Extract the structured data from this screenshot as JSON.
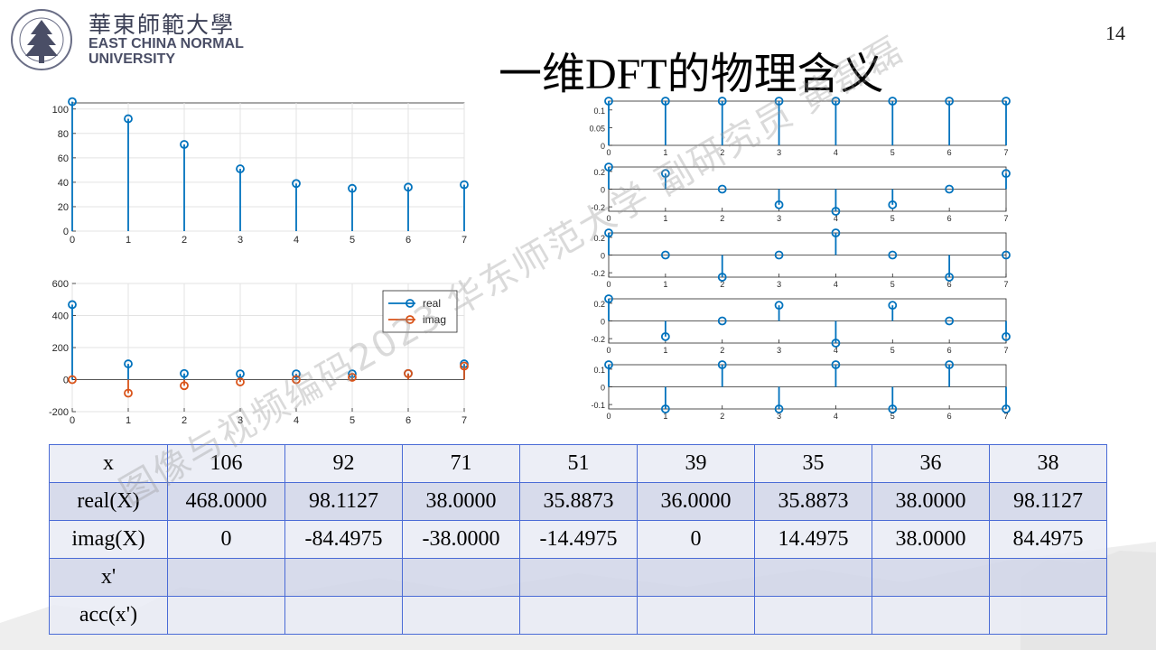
{
  "header": {
    "logo_cn": "華東師範大學",
    "logo_en_line1": "EAST CHINA NORMAL",
    "logo_en_line2": "UNIVERSITY",
    "page_number": "14",
    "title": "一维DFT的物理含义"
  },
  "watermark": "图像与视频编码2023 华东师范大学 副研究员 黄磊磊",
  "chart_data": [
    {
      "type": "stem",
      "x": [
        0,
        1,
        2,
        3,
        4,
        5,
        6,
        7
      ],
      "series": [
        {
          "values": [
            106,
            92,
            71,
            51,
            39,
            35,
            36,
            38
          ],
          "color": "#0072bd"
        }
      ],
      "xlim": [
        0,
        7
      ],
      "ylim": [
        0,
        105
      ],
      "xticks": [
        "0",
        "1",
        "2",
        "3",
        "4",
        "5",
        "6",
        "7"
      ],
      "yticks": [
        0,
        20,
        40,
        60,
        80,
        100
      ],
      "grid": true
    },
    {
      "type": "stem",
      "x": [
        0,
        1,
        2,
        3,
        4,
        5,
        6,
        7
      ],
      "series": [
        {
          "name": "real",
          "values": [
            468,
            98.1127,
            38,
            35.8873,
            36,
            35.8873,
            38,
            98.1127
          ],
          "color": "#0072bd"
        },
        {
          "name": "imag",
          "values": [
            0,
            -84.4975,
            -38,
            -14.4975,
            0,
            14.4975,
            38,
            84.4975
          ],
          "color": "#d95319"
        }
      ],
      "xlim": [
        0,
        7
      ],
      "ylim": [
        -200,
        600
      ],
      "xticks": [
        "0",
        "1",
        "2",
        "3",
        "4",
        "5",
        "6",
        "7"
      ],
      "yticks": [
        -200,
        0,
        200,
        400,
        600
      ],
      "legend": "top-right",
      "grid": true
    },
    {
      "type": "stem",
      "x": [
        0,
        1,
        2,
        3,
        4,
        5,
        6,
        7
      ],
      "series": [
        {
          "values": [
            0.125,
            0.125,
            0.125,
            0.125,
            0.125,
            0.125,
            0.125,
            0.125
          ],
          "color": "#0072bd"
        }
      ],
      "ylim": [
        0,
        0.125
      ],
      "yticks": [
        0,
        0.05,
        0.1
      ],
      "ytick_labels": [
        "0",
        "0.05",
        "0.1"
      ]
    },
    {
      "type": "stem",
      "x": [
        0,
        1,
        2,
        3,
        4,
        5,
        6,
        7
      ],
      "series": [
        {
          "values": [
            0.25,
            0.177,
            0,
            -0.177,
            -0.25,
            -0.177,
            0,
            0.177
          ],
          "color": "#0072bd"
        }
      ],
      "ylim": [
        -0.25,
        0.25
      ],
      "yticks": [
        -0.2,
        0,
        0.2
      ],
      "ytick_labels": [
        "-0.2",
        "0",
        "0.2"
      ]
    },
    {
      "type": "stem",
      "x": [
        0,
        1,
        2,
        3,
        4,
        5,
        6,
        7
      ],
      "series": [
        {
          "values": [
            0.25,
            0,
            -0.25,
            0,
            0.25,
            0,
            -0.25,
            0
          ],
          "color": "#0072bd"
        }
      ],
      "ylim": [
        -0.25,
        0.25
      ],
      "yticks": [
        -0.2,
        0,
        0.2
      ],
      "ytick_labels": [
        "-0.2",
        "0",
        "0.2"
      ]
    },
    {
      "type": "stem",
      "x": [
        0,
        1,
        2,
        3,
        4,
        5,
        6,
        7
      ],
      "series": [
        {
          "values": [
            0.25,
            -0.177,
            0,
            0.177,
            -0.25,
            0.177,
            0,
            -0.177
          ],
          "color": "#0072bd"
        }
      ],
      "ylim": [
        -0.25,
        0.25
      ],
      "yticks": [
        -0.2,
        0,
        0.2
      ],
      "ytick_labels": [
        "-0.2",
        "0",
        "0.2"
      ]
    },
    {
      "type": "stem",
      "x": [
        0,
        1,
        2,
        3,
        4,
        5,
        6,
        7
      ],
      "series": [
        {
          "values": [
            0.125,
            -0.125,
            0.125,
            -0.125,
            0.125,
            -0.125,
            0.125,
            -0.125
          ],
          "color": "#0072bd"
        }
      ],
      "ylim": [
        -0.125,
        0.125
      ],
      "yticks": [
        -0.1,
        0,
        0.1
      ],
      "ytick_labels": [
        "-0.1",
        "0",
        "0.1"
      ]
    }
  ],
  "table": {
    "rows": [
      {
        "head": "x",
        "cells": [
          "106",
          "92",
          "71",
          "51",
          "39",
          "35",
          "36",
          "38"
        ]
      },
      {
        "head": "real(X)",
        "cells": [
          "468.0000",
          "98.1127",
          "38.0000",
          "35.8873",
          "36.0000",
          "35.8873",
          "38.0000",
          "98.1127"
        ]
      },
      {
        "head": "imag(X)",
        "cells": [
          "0",
          "-84.4975",
          "-38.0000",
          "-14.4975",
          "0",
          "14.4975",
          "38.0000",
          "84.4975"
        ]
      },
      {
        "head": "x'",
        "cells": [
          "",
          "",
          "",
          "",
          "",
          "",
          "",
          ""
        ]
      },
      {
        "head": "acc(x')",
        "cells": [
          "",
          "",
          "",
          "",
          "",
          "",
          "",
          ""
        ]
      }
    ]
  }
}
